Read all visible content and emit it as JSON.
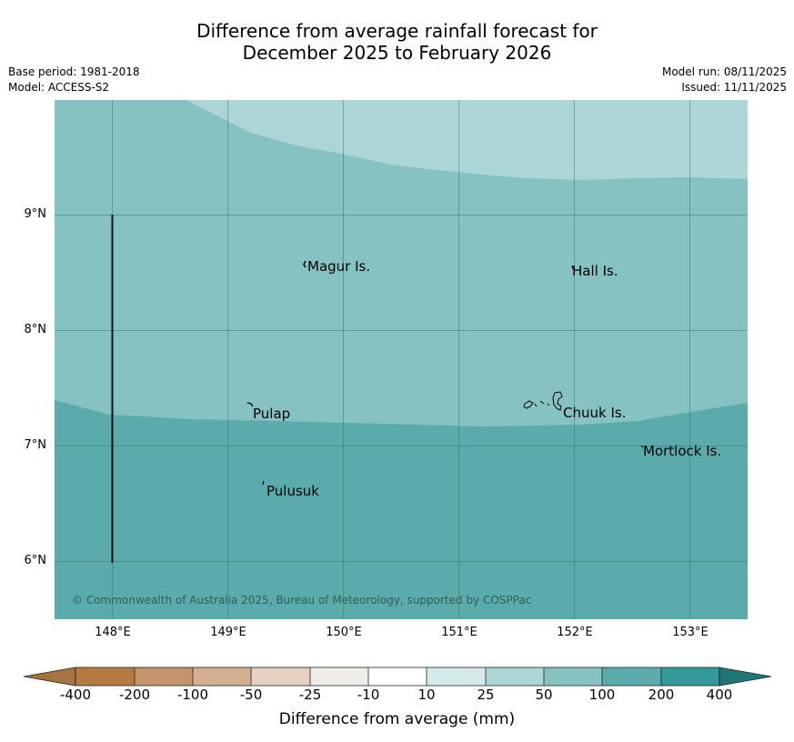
{
  "title": {
    "line1": "Difference from average rainfall forecast for",
    "line2": "December 2025 to February 2026"
  },
  "meta": {
    "base_period": "Base period: 1981-2018",
    "model": "Model: ACCESS-S2",
    "model_run": "Model run: 08/11/2025",
    "issued": "Issued: 11/11/2025"
  },
  "map": {
    "lat_labels": [
      "9°N",
      "8°N",
      "7°N",
      "6°N"
    ],
    "lon_labels": [
      "148°E",
      "149°E",
      "150°E",
      "151°E",
      "152°E",
      "153°E"
    ],
    "places": [
      {
        "name": "Magur Is."
      },
      {
        "name": "Hall Is."
      },
      {
        "name": "Pulap"
      },
      {
        "name": "Chuuk Is."
      },
      {
        "name": "Mortlock Is."
      },
      {
        "name": "Pulusuk"
      }
    ],
    "zones": [
      {
        "range": "25 to 50",
        "color": "#acd6d6"
      },
      {
        "range": "50 to 100",
        "color": "#85c2c1"
      },
      {
        "range": "100 to 200",
        "color": "#5babab"
      }
    ],
    "copyright": "© Commonwealth of Australia 2025, Bureau of Meteorology, supported by COSPPac"
  },
  "legend": {
    "ticks": [
      "-400",
      "-200",
      "-100",
      "-50",
      "-25",
      "-10",
      "10",
      "25",
      "50",
      "100",
      "200",
      "400"
    ],
    "colors": [
      "#a5733d",
      "#b47a40",
      "#c4956a",
      "#d3b08f",
      "#e4d1c1",
      "#f0ede9",
      "#ffffff",
      "#d5ebea",
      "#acd6d6",
      "#85c2c1",
      "#5babab",
      "#34999a",
      "#1f7676"
    ],
    "label": "Difference from average (mm)"
  }
}
